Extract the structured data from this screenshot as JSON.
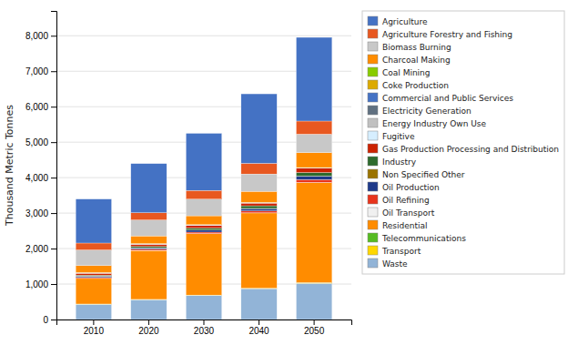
{
  "chart_data": {
    "type": "bar",
    "stacked": true,
    "grid": true,
    "legend": "right",
    "ylabel": "Thousand Metric Tonnes",
    "categories": [
      "2010",
      "2020",
      "2030",
      "2040",
      "2050"
    ],
    "ylim": [
      0,
      8700
    ],
    "yticks": [
      0,
      {
        "value": 1000,
        "label": "1,000"
      },
      {
        "value": 2000,
        "label": "2,000"
      },
      {
        "value": 3000,
        "label": "3,000"
      },
      {
        "value": 4000,
        "label": "4,000"
      },
      {
        "value": 5000,
        "label": "5,000"
      },
      {
        "value": 6000,
        "label": "6,000"
      },
      {
        "value": 7000,
        "label": "7,000"
      },
      {
        "value": 8000,
        "label": "8,000"
      }
    ],
    "series": [
      {
        "name": "Waste",
        "color": "#92B4D7",
        "values": [
          430,
          560,
          680,
          870,
          1020
        ]
      },
      {
        "name": "Transport",
        "color": "#FFD700",
        "values": [
          5,
          5,
          8,
          12,
          18
        ]
      },
      {
        "name": "Telecommunications",
        "color": "#55BB22",
        "values": [
          2,
          2,
          2,
          2,
          3
        ]
      },
      {
        "name": "Residential",
        "color": "#FF8C00",
        "values": [
          720,
          1380,
          1730,
          2120,
          2820
        ]
      },
      {
        "name": "Oil Transport",
        "color": "#F0F0F0",
        "values": [
          4,
          4,
          4,
          4,
          4
        ]
      },
      {
        "name": "Oil Refining",
        "color": "#E8341C",
        "values": [
          25,
          30,
          40,
          55,
          80
        ]
      },
      {
        "name": "Oil Production",
        "color": "#1E3A8A",
        "values": [
          35,
          40,
          55,
          65,
          95
        ]
      },
      {
        "name": "Non Specified Other",
        "color": "#9B7300",
        "values": [
          4,
          4,
          4,
          4,
          4
        ]
      },
      {
        "name": "Industry",
        "color": "#2D6A2D",
        "values": [
          25,
          35,
          55,
          75,
          100
        ]
      },
      {
        "name": "Gas Production Processing and Distribution",
        "color": "#CC2200",
        "values": [
          55,
          60,
          75,
          75,
          120
        ]
      },
      {
        "name": "Fugitive",
        "color": "#D6EEFF",
        "values": [
          4,
          4,
          4,
          4,
          4
        ]
      },
      {
        "name": "Energy Industry Own Use",
        "color": "#C0C0C0",
        "values": [
          4,
          4,
          4,
          4,
          4
        ]
      },
      {
        "name": "Electricity Generation",
        "color": "#607080",
        "values": [
          4,
          4,
          4,
          4,
          4
        ]
      },
      {
        "name": "Commercial and Public Services",
        "color": "#4472C4",
        "values": [
          3,
          3,
          3,
          3,
          3
        ]
      },
      {
        "name": "Coke Production",
        "color": "#DDAA00",
        "values": [
          3,
          3,
          3,
          3,
          3
        ]
      },
      {
        "name": "Coal Mining",
        "color": "#88CC00",
        "values": [
          3,
          3,
          3,
          3,
          3
        ]
      },
      {
        "name": "Charcoal Making",
        "color": "#FF8C00",
        "values": [
          195,
          215,
          250,
          310,
          420
        ]
      },
      {
        "name": "Biomass Burning",
        "color": "#C8C8C8",
        "values": [
          440,
          450,
          470,
          490,
          520
        ]
      },
      {
        "name": "Agriculture Forestry and Fishing",
        "color": "#E85820",
        "values": [
          195,
          205,
          245,
          300,
          370
        ]
      },
      {
        "name": "Agriculture",
        "color": "#4472C4",
        "values": [
          1240,
          1385,
          1610,
          1960,
          2360
        ]
      }
    ]
  }
}
